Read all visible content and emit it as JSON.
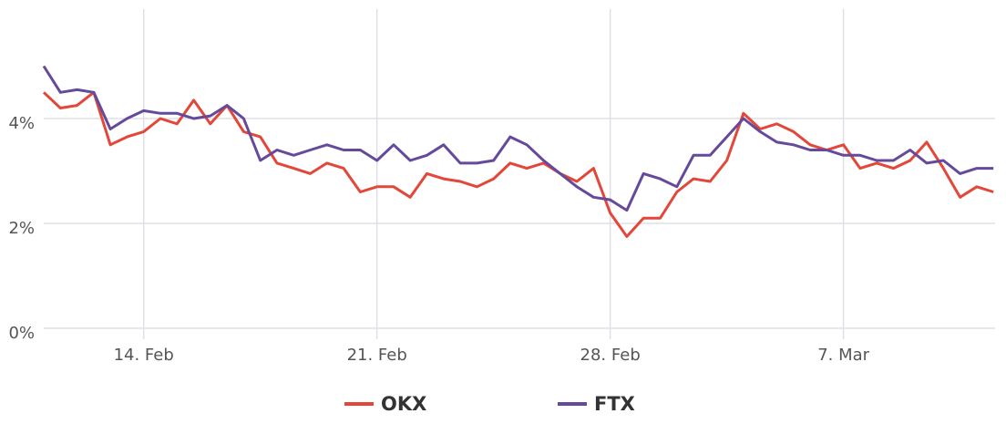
{
  "chart_data": {
    "type": "line",
    "x": [
      11,
      11.5,
      12,
      12.5,
      13,
      13.5,
      14,
      14.5,
      15,
      15.5,
      16,
      16.5,
      17,
      17.5,
      18,
      18.5,
      19,
      19.5,
      20,
      20.5,
      21,
      21.5,
      22,
      22.5,
      23,
      23.5,
      24,
      24.5,
      25,
      25.5,
      26,
      26.5,
      27,
      27.5,
      28,
      28.5,
      29,
      29.5,
      30,
      30.5,
      31,
      31.5,
      32,
      32.5,
      33,
      33.5,
      34,
      34.5,
      35,
      35.5,
      36,
      36.5,
      37,
      37.5,
      38,
      38.5,
      39,
      39.5
    ],
    "series": [
      {
        "name": "OKX",
        "color": "#e2473a",
        "values": [
          4.5,
          4.2,
          4.25,
          4.5,
          3.5,
          3.65,
          3.75,
          4.0,
          3.9,
          4.35,
          3.9,
          4.25,
          3.75,
          3.65,
          3.15,
          3.05,
          2.95,
          3.15,
          3.05,
          2.6,
          2.7,
          2.7,
          2.5,
          2.95,
          2.85,
          2.8,
          2.7,
          2.85,
          3.15,
          3.05,
          3.15,
          2.95,
          2.8,
          3.05,
          2.2,
          1.75,
          2.1,
          2.1,
          2.6,
          2.85,
          2.8,
          3.2,
          4.1,
          3.8,
          3.9,
          3.75,
          3.5,
          3.4,
          3.5,
          3.05,
          3.15,
          3.05,
          3.2,
          3.55,
          3.05,
          2.5,
          2.7,
          2.6
        ]
      },
      {
        "name": "FTX",
        "color": "#654a9b",
        "values": [
          5.0,
          4.5,
          4.55,
          4.5,
          3.8,
          4.0,
          4.15,
          4.1,
          4.1,
          4.0,
          4.05,
          4.25,
          4.0,
          3.2,
          3.4,
          3.3,
          3.4,
          3.5,
          3.4,
          3.4,
          3.2,
          3.5,
          3.2,
          3.3,
          3.5,
          3.15,
          3.15,
          3.2,
          3.65,
          3.5,
          3.2,
          2.95,
          2.7,
          2.5,
          2.45,
          2.25,
          2.95,
          2.85,
          2.7,
          3.3,
          3.3,
          3.65,
          4.0,
          3.75,
          3.55,
          3.5,
          3.4,
          3.4,
          3.3,
          3.3,
          3.2,
          3.2,
          3.4,
          3.15,
          3.2,
          2.95,
          3.05,
          3.05
        ]
      }
    ],
    "xlim": [
      11,
      39.55
    ],
    "xticks": [
      {
        "value": 14,
        "label": "14. Feb"
      },
      {
        "value": 21,
        "label": "21. Feb"
      },
      {
        "value": 28,
        "label": "28. Feb"
      },
      {
        "value": 35,
        "label": "7. Mar"
      }
    ],
    "ylim": [
      0,
      6
    ],
    "yticks": [
      {
        "value": 0,
        "label": "0%"
      },
      {
        "value": 2,
        "label": "2%"
      },
      {
        "value": 4,
        "label": "4%"
      }
    ],
    "grid": true
  }
}
